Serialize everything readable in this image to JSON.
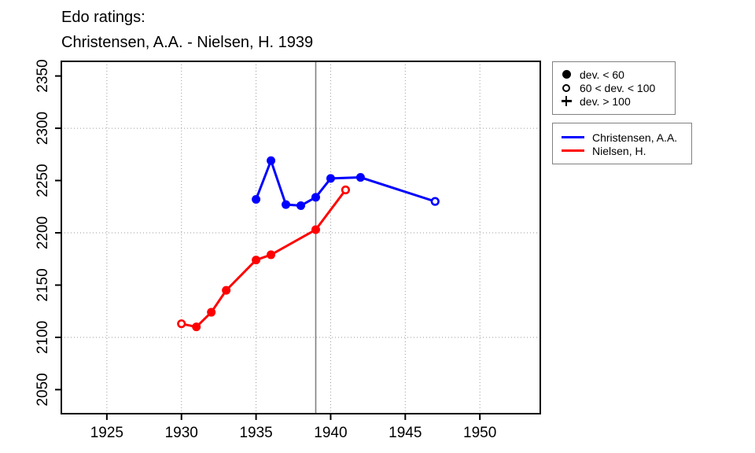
{
  "title": {
    "line1": "Edo ratings:",
    "line2": "Christensen, A.A. - Nielsen, H. 1939"
  },
  "marker_legend": {
    "items": [
      {
        "symbol": "filled-circle",
        "label": "dev. < 60"
      },
      {
        "symbol": "open-circle",
        "label": "60 < dev. < 100"
      },
      {
        "symbol": "plus",
        "label": "dev. > 100"
      }
    ]
  },
  "series_legend": {
    "items": [
      {
        "color": "#0000ff",
        "label": "Christensen, A.A."
      },
      {
        "color": "#ff0000",
        "label": "Nielsen, H."
      }
    ]
  },
  "chart_data": {
    "type": "line",
    "title": "Edo ratings: Christensen, A.A. - Nielsen, H. 1939",
    "xlabel": "",
    "ylabel": "",
    "xlim": [
      1921.95,
      1954.05
    ],
    "ylim": [
      2027,
      2364
    ],
    "x_ticks": [
      1925,
      1930,
      1935,
      1940,
      1945,
      1950
    ],
    "y_ticks": [
      2050,
      2100,
      2150,
      2200,
      2250,
      2300,
      2350
    ],
    "x_gridlines": [
      1925,
      1930,
      1935,
      1940,
      1945,
      1950
    ],
    "y_gridlines": [
      2100,
      2200,
      2300
    ],
    "grid_on": true,
    "grid_color": "#9a9a9a",
    "vline": {
      "x": 1939,
      "color": "#808080"
    },
    "marker_meanings": {
      "filled": "dev. < 60",
      "open": "60 < dev. < 100",
      "plus": "dev. > 100"
    },
    "legend_position": "top-right-outside",
    "series": [
      {
        "name": "Christensen, A.A.",
        "color": "#0000ff",
        "points": [
          {
            "x": 1935,
            "y": 2232,
            "marker": "filled"
          },
          {
            "x": 1936,
            "y": 2269,
            "marker": "filled"
          },
          {
            "x": 1937,
            "y": 2227,
            "marker": "filled"
          },
          {
            "x": 1938,
            "y": 2226,
            "marker": "filled"
          },
          {
            "x": 1939,
            "y": 2234,
            "marker": "filled"
          },
          {
            "x": 1940,
            "y": 2252,
            "marker": "filled"
          },
          {
            "x": 1942,
            "y": 2253,
            "marker": "filled"
          },
          {
            "x": 1947,
            "y": 2230,
            "marker": "open"
          }
        ]
      },
      {
        "name": "Nielsen, H.",
        "color": "#ff0000",
        "points": [
          {
            "x": 1930,
            "y": 2113,
            "marker": "open"
          },
          {
            "x": 1931,
            "y": 2110,
            "marker": "filled"
          },
          {
            "x": 1932,
            "y": 2124,
            "marker": "filled"
          },
          {
            "x": 1933,
            "y": 2145,
            "marker": "filled"
          },
          {
            "x": 1935,
            "y": 2174,
            "marker": "filled"
          },
          {
            "x": 1936,
            "y": 2179,
            "marker": "filled"
          },
          {
            "x": 1939,
            "y": 2203,
            "marker": "filled"
          },
          {
            "x": 1941,
            "y": 2241,
            "marker": "open"
          }
        ]
      }
    ]
  }
}
